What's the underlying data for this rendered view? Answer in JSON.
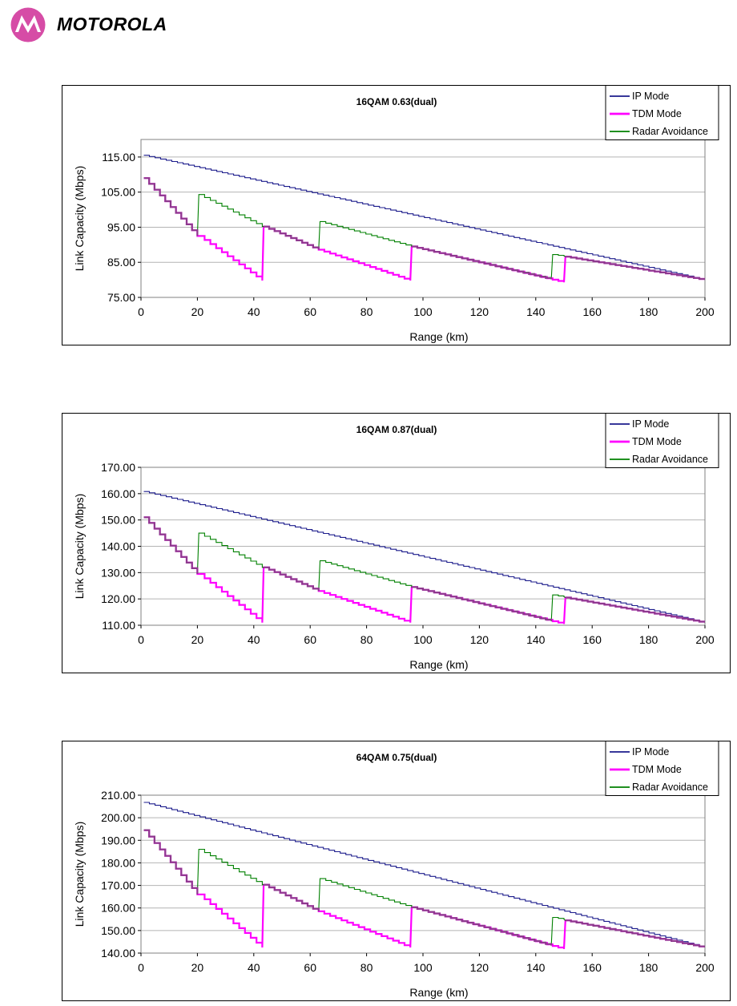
{
  "brand": {
    "name": "MOTOROLA",
    "logo_color": "#d64ca6"
  },
  "colors": {
    "ip": "#1c1c8c",
    "tdm": "#ff00ff",
    "radar": "#008000",
    "overlap": "#8e3a8e",
    "grid": "#b4b4b4"
  },
  "chart_data": [
    {
      "type": "line",
      "title": "16QAM 0.63(dual)",
      "xlabel": "Range (km)",
      "ylabel": "Link Capacity (Mbps)",
      "xlim": [
        0,
        200
      ],
      "ylim": [
        75,
        120
      ],
      "yticks": [
        "115.00",
        "105.00",
        "95.00",
        "85.00",
        "75.00"
      ],
      "xticks": [
        "0",
        "20",
        "40",
        "60",
        "80",
        "100",
        "120",
        "140",
        "160",
        "180",
        "200"
      ],
      "legend": {
        "placement": "top-right",
        "entries": [
          "IP Mode",
          "TDM Mode",
          "Radar Avoidance"
        ]
      },
      "grid": true,
      "series": [
        {
          "name": "IP Mode",
          "x": [
            1,
            200
          ],
          "y": [
            115.5,
            80.0
          ]
        },
        {
          "name": "TDM Mode",
          "x": [
            1,
            20,
            20.5,
            43,
            43.5,
            63,
            95.5,
            96,
            150,
            150.5,
            200
          ],
          "y": [
            109.0,
            92.5,
            92.5,
            79.8,
            95.2,
            88.6,
            79.8,
            89.5,
            79.3,
            86.6,
            80.0
          ]
        },
        {
          "name": "Radar Avoidance",
          "x": [
            1,
            20,
            20.5,
            43,
            43.5,
            63,
            63.5,
            96,
            145.5,
            146,
            150,
            150.5,
            200
          ],
          "y": [
            109.0,
            92.5,
            104.3,
            95.2,
            95.2,
            88.6,
            96.6,
            89.5,
            80.3,
            87.2,
            86.8,
            86.6,
            80.0
          ]
        }
      ]
    },
    {
      "type": "line",
      "title": "16QAM 0.87(dual)",
      "xlabel": "Range (km)",
      "ylabel": "Link Capacity (Mbps)",
      "xlim": [
        0,
        200
      ],
      "ylim": [
        110,
        170
      ],
      "yticks": [
        "170.00",
        "160.00",
        "150.00",
        "140.00",
        "130.00",
        "120.00",
        "110.00"
      ],
      "xticks": [
        "0",
        "20",
        "40",
        "60",
        "80",
        "100",
        "120",
        "140",
        "160",
        "180",
        "200"
      ],
      "legend": {
        "placement": "top-right",
        "entries": [
          "IP Mode",
          "TDM Mode",
          "Radar Avoidance"
        ]
      },
      "grid": true,
      "series": [
        {
          "name": "IP Mode",
          "x": [
            1,
            200
          ],
          "y": [
            160.8,
            111.0
          ]
        },
        {
          "name": "TDM Mode",
          "x": [
            1,
            20,
            20.5,
            43,
            43.5,
            63,
            95.5,
            96,
            150,
            150.5,
            200
          ],
          "y": [
            151.0,
            129.5,
            129.5,
            111.0,
            132.0,
            123.0,
            111.0,
            124.5,
            110.5,
            120.5,
            111.0
          ]
        },
        {
          "name": "Radar Avoidance",
          "x": [
            1,
            20,
            20.5,
            43,
            43.5,
            63,
            63.5,
            96,
            145.5,
            146,
            150,
            150.5,
            200
          ],
          "y": [
            151.0,
            129.5,
            145.0,
            132.0,
            132.0,
            123.0,
            134.5,
            124.5,
            111.5,
            121.5,
            120.8,
            120.5,
            111.0
          ]
        }
      ]
    },
    {
      "type": "line",
      "title": "64QAM 0.75(dual)",
      "xlabel": "Range (km)",
      "ylabel": "Link Capacity (Mbps)",
      "xlim": [
        0,
        200
      ],
      "ylim": [
        140,
        210
      ],
      "yticks": [
        "210.00",
        "200.00",
        "190.00",
        "180.00",
        "170.00",
        "160.00",
        "150.00",
        "140.00"
      ],
      "xticks": [
        "0",
        "20",
        "40",
        "60",
        "80",
        "100",
        "120",
        "140",
        "160",
        "180",
        "200"
      ],
      "legend": {
        "placement": "top-right",
        "entries": [
          "IP Mode",
          "TDM Mode",
          "Radar Avoidance"
        ]
      },
      "grid": true,
      "series": [
        {
          "name": "IP Mode",
          "x": [
            1,
            200
          ],
          "y": [
            206.8,
            142.5
          ]
        },
        {
          "name": "TDM Mode",
          "x": [
            1,
            20,
            20.5,
            43,
            43.5,
            63,
            95.5,
            96,
            150,
            150.5,
            200
          ],
          "y": [
            194.5,
            166.0,
            166.0,
            142.5,
            170.3,
            158.5,
            142.5,
            160.3,
            141.8,
            154.5,
            142.5
          ]
        },
        {
          "name": "Radar Avoidance",
          "x": [
            1,
            20,
            20.5,
            43,
            43.5,
            63,
            63.5,
            96,
            145.5,
            146,
            150,
            150.5,
            200
          ],
          "y": [
            194.5,
            166.0,
            186.0,
            170.3,
            170.3,
            158.5,
            173.0,
            160.3,
            143.5,
            155.8,
            155.0,
            154.5,
            142.5
          ]
        }
      ]
    }
  ]
}
